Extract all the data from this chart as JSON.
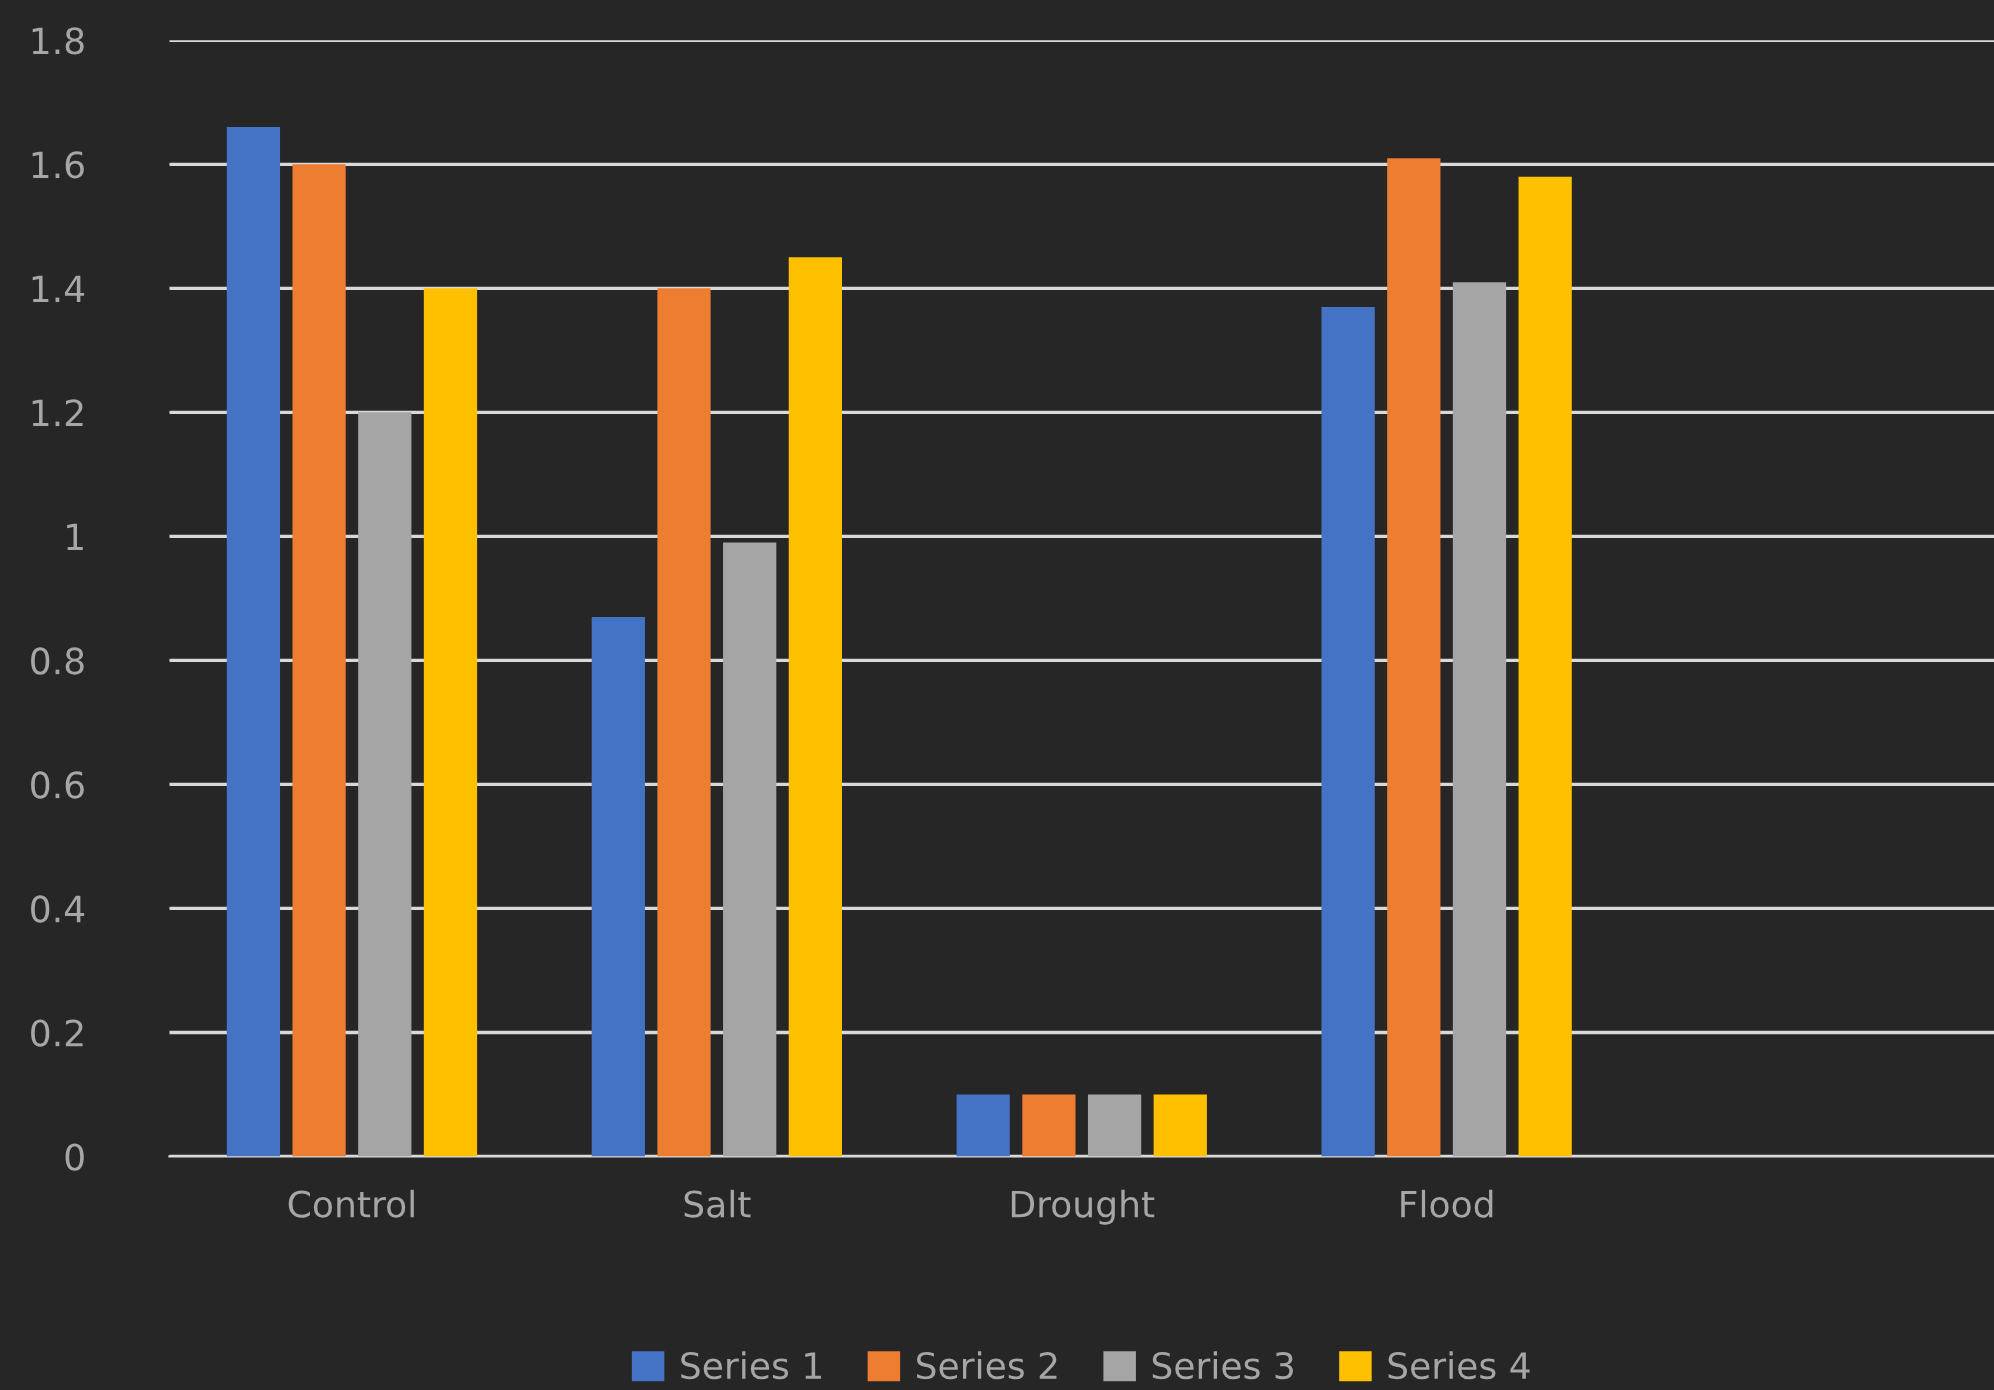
{
  "chart_data": {
    "type": "bar",
    "categories": [
      "Control",
      "Salt",
      "Drought",
      "Flood",
      null
    ],
    "series": [
      {
        "name": "Series 1",
        "color": "#4472c4",
        "values": [
          1.66,
          0.87,
          0.1,
          1.37,
          null
        ]
      },
      {
        "name": "Series 2",
        "color": "#ed7d31",
        "values": [
          1.6,
          1.4,
          0.1,
          1.61,
          null
        ]
      },
      {
        "name": "Series 3",
        "color": "#a5a5a5",
        "values": [
          1.2,
          0.99,
          0.1,
          1.41,
          null
        ]
      },
      {
        "name": "Series 4",
        "color": "#ffc000",
        "values": [
          1.4,
          1.45,
          0.1,
          1.58,
          null
        ]
      }
    ],
    "ylim": [
      0,
      1.8
    ],
    "yticks": [
      0,
      0.2,
      0.4,
      0.6,
      0.8,
      1,
      1.2,
      1.4,
      1.6,
      1.8
    ],
    "grid": "y",
    "legend": "bottom"
  }
}
